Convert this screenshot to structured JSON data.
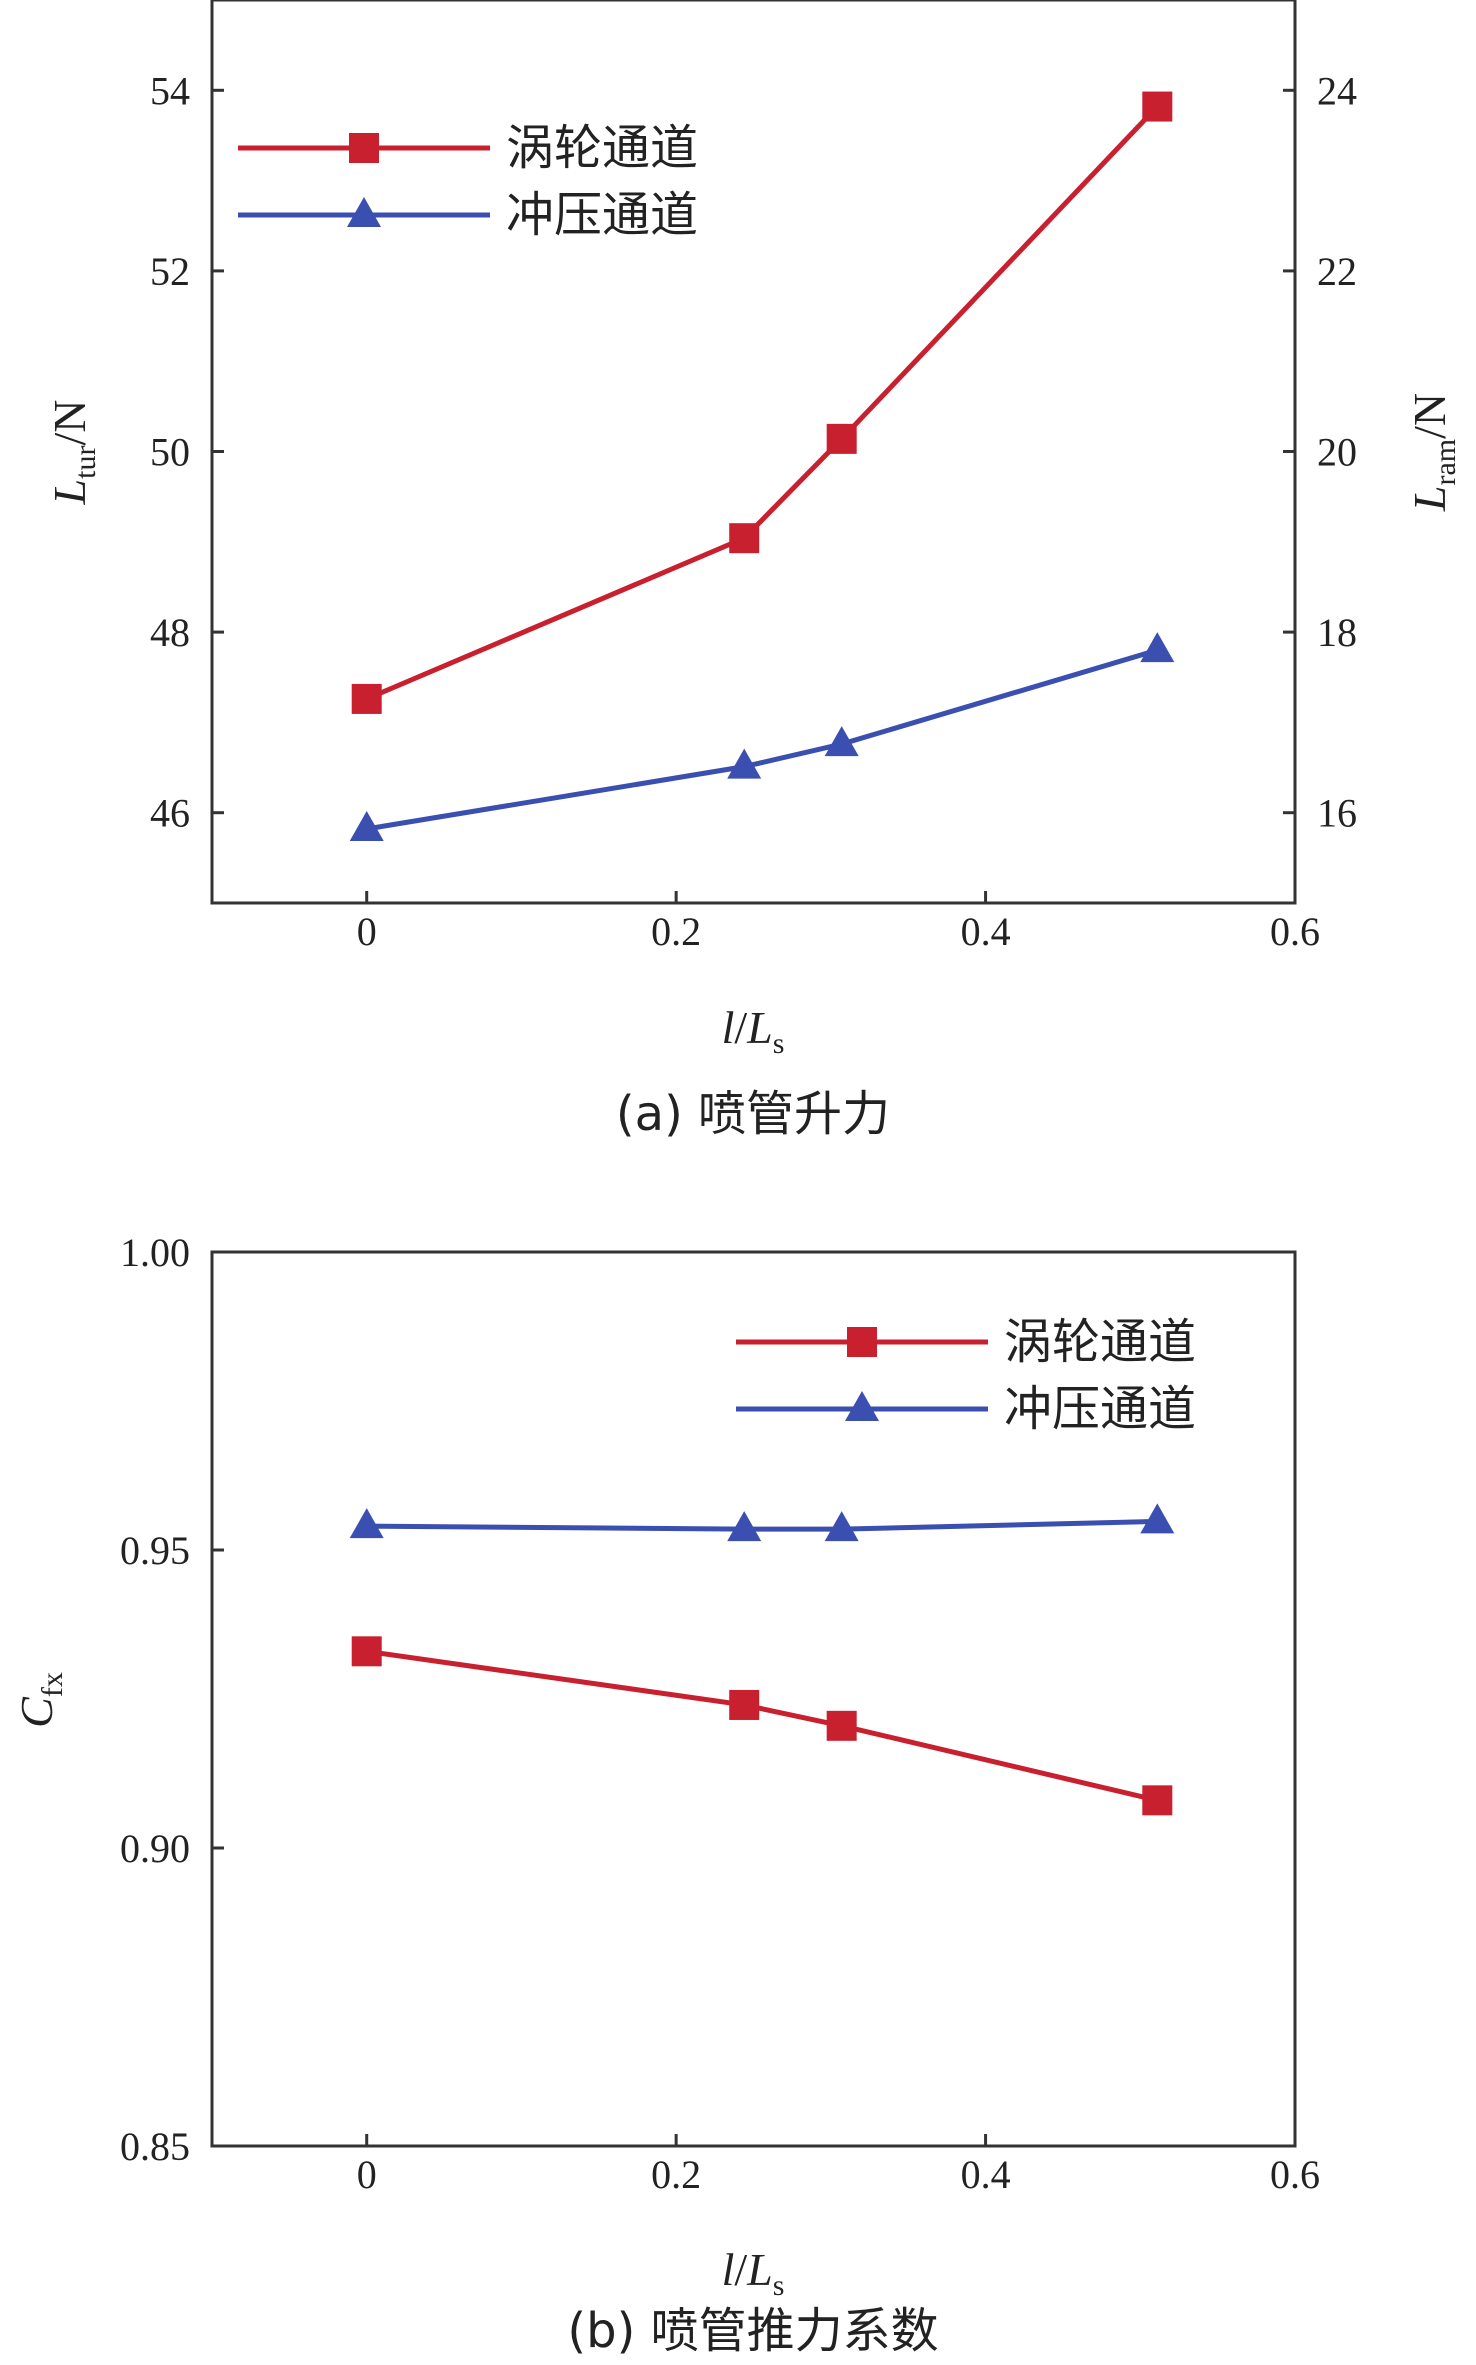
{
  "chart_data": [
    {
      "type": "line",
      "caption": "(a) 喷管升力",
      "xlabel_main": "l",
      "xlabel_sep": "/",
      "xlabel_L": "L",
      "xlabel_sub": "s",
      "ylabel_main": "L",
      "ylabel_sub": "tur",
      "ylabel_unit": "/N",
      "y2label_main": "L",
      "y2label_sub": "ram",
      "y2label_unit": "/N",
      "xlim": [
        -0.1,
        0.6
      ],
      "ylim": [
        45,
        55
      ],
      "y2lim": [
        15,
        25
      ],
      "xticks": [
        0,
        0.2,
        0.4,
        0.6
      ],
      "xtick_labels": [
        "0",
        "0.2",
        "0.4",
        "0.6"
      ],
      "yticks": [
        46,
        48,
        50,
        52,
        54
      ],
      "ytick_labels": [
        "46",
        "48",
        "50",
        "52",
        "54"
      ],
      "y2ticks": [
        16,
        18,
        20,
        22,
        24
      ],
      "y2tick_labels": [
        "16",
        "18",
        "20",
        "22",
        "24"
      ],
      "legend_position": "top-left",
      "series": [
        {
          "name": "涡轮通道",
          "color": "#c8202f",
          "marker": "square",
          "axis": "left",
          "x": [
            0,
            0.244,
            0.307,
            0.511
          ],
          "values": [
            47.26,
            49.04,
            50.14,
            53.82
          ]
        },
        {
          "name": "冲压通道",
          "color": "#3a4fb0",
          "marker": "triangle",
          "axis": "right",
          "x": [
            0,
            0.244,
            0.307,
            0.511
          ],
          "values": [
            15.82,
            16.51,
            16.76,
            17.8
          ]
        }
      ]
    },
    {
      "type": "line",
      "caption": "(b) 喷管推力系数",
      "xlabel_main": "l",
      "xlabel_sep": "/",
      "xlabel_L": "L",
      "xlabel_sub": "s",
      "ylabel_main": "C",
      "ylabel_sub": "fx",
      "xlim": [
        -0.1,
        0.6
      ],
      "ylim": [
        0.85,
        1.0
      ],
      "xticks": [
        0,
        0.2,
        0.4,
        0.6
      ],
      "xtick_labels": [
        "0",
        "0.2",
        "0.4",
        "0.6"
      ],
      "yticks": [
        0.85,
        0.9,
        0.95,
        1.0
      ],
      "ytick_labels": [
        "0.85",
        "0.90",
        "0.95",
        "1.00"
      ],
      "legend_position": "top-right",
      "series": [
        {
          "name": "涡轮通道",
          "color": "#c8202f",
          "marker": "square",
          "axis": "left",
          "x": [
            0,
            0.244,
            0.307,
            0.511
          ],
          "values": [
            0.933,
            0.924,
            0.9205,
            0.908
          ]
        },
        {
          "name": "冲压通道",
          "color": "#3a4fb0",
          "marker": "triangle",
          "axis": "left",
          "x": [
            0,
            0.244,
            0.307,
            0.511
          ],
          "values": [
            0.954,
            0.9535,
            0.9535,
            0.9548
          ]
        }
      ]
    }
  ]
}
